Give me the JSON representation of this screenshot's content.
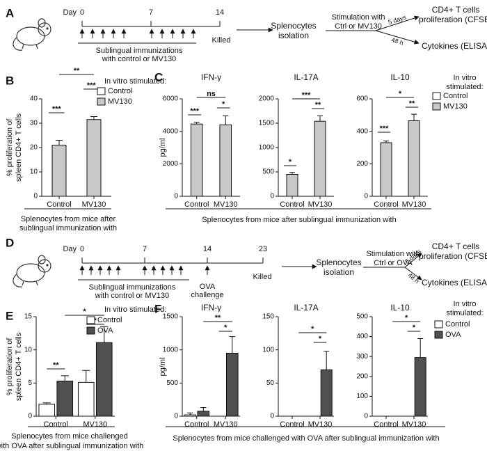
{
  "panel_labels": [
    "A",
    "B",
    "C",
    "D",
    "E",
    "F"
  ],
  "timelines": [
    {
      "day_label": "Day",
      "days": [
        0,
        7,
        14
      ],
      "end_label": "Killed",
      "immunization": [
        "Sublingual immunizations",
        "with control or MV130"
      ],
      "isolation": [
        "Splenocytes",
        "isolation"
      ],
      "stimulation": [
        "Stimulation with",
        "Ctrl or MV130"
      ],
      "durations": [
        "5 days",
        "48 h"
      ],
      "readouts": [
        [
          "CD4+ T cells",
          "proliferation (CFSE)"
        ],
        [
          "Cytokines (ELISA)"
        ]
      ]
    },
    {
      "day_label": "Day",
      "days": [
        0,
        7,
        14,
        23
      ],
      "end_label": "Killed",
      "immunization": [
        "Sublingual immunizations",
        "with control or MV130"
      ],
      "challenge": [
        "OVA",
        "challenge"
      ],
      "isolation": [
        "Splenocytes",
        "isolation"
      ],
      "stimulation": [
        "Stimulation with",
        "Ctrl or OVA"
      ],
      "durations": [
        "5 days",
        "48 h"
      ],
      "readouts": [
        [
          "CD4+ T cells",
          "proliferation (CFSE)"
        ],
        [
          "Cytokines (ELISA)"
        ]
      ]
    }
  ],
  "chart_data": [
    {
      "type": "bar",
      "categories": [
        "Control",
        "MV130"
      ],
      "series": [
        {
          "name": "Control",
          "color": "#ffffff",
          "values": [
            null,
            null
          ],
          "errors": [
            null,
            null
          ]
        },
        {
          "name": "MV130",
          "color": "#c8c8c8",
          "values": [
            21,
            31.5
          ],
          "errors": [
            2,
            1.2
          ]
        }
      ],
      "ylim": [
        0,
        40
      ],
      "yticks": [
        0,
        10,
        20,
        30,
        40
      ],
      "ylabel": [
        "% proliferation of",
        "spleen CD4+ T cells"
      ],
      "xlabel": [
        "Splenocytes from mice after",
        "sublingual immunization with"
      ],
      "legend_title": [
        "In vitro stimulated:"
      ],
      "significance": [
        "***",
        "***",
        "**"
      ]
    },
    {
      "type": "bar",
      "title": "IFN-γ",
      "categories": [
        "Control",
        "MV130"
      ],
      "series": [
        {
          "color": "#c8c8c8",
          "values": [
            4450,
            4400
          ],
          "errors": [
            100,
            550
          ]
        }
      ],
      "ylim": [
        0,
        6000
      ],
      "yticks": [
        0,
        2000,
        4000,
        6000
      ],
      "ylabel": [
        "pg/ml"
      ],
      "xlabel": [
        "Splenocytes from mice after sublingual immunization with"
      ],
      "significance": [
        "***",
        "ns",
        "*"
      ]
    },
    {
      "type": "bar",
      "title": "IL-17A",
      "categories": [
        "Control",
        "MV130"
      ],
      "series": [
        {
          "color": "#c8c8c8",
          "values": [
            450,
            1540
          ],
          "errors": [
            40,
            110
          ]
        }
      ],
      "ylim": [
        0,
        2000
      ],
      "yticks": [
        0,
        500,
        1000,
        1500,
        2000
      ],
      "significance": [
        "*",
        "***",
        "**"
      ]
    },
    {
      "type": "bar",
      "title": "IL-10",
      "categories": [
        "Control",
        "MV130"
      ],
      "series": [
        {
          "name": "Control",
          "color": "#ffffff",
          "values": [
            null,
            null
          ],
          "errors": [
            null,
            null
          ]
        },
        {
          "name": "MV130",
          "color": "#c8c8c8",
          "values": [
            330,
            465
          ],
          "errors": [
            10,
            40
          ]
        }
      ],
      "ylim": [
        0,
        600
      ],
      "yticks": [
        0,
        200,
        400,
        600
      ],
      "legend_title": [
        "In vitro",
        "stimulated:"
      ],
      "significance": [
        "***",
        "*",
        "**"
      ]
    },
    {
      "type": "bar",
      "categories": [
        "Control",
        "MV130"
      ],
      "series": [
        {
          "name": "Control",
          "color": "#ffffff",
          "values": [
            1.8,
            5.1
          ],
          "errors": [
            0.2,
            1.8
          ]
        },
        {
          "name": "OVA",
          "color": "#505050",
          "values": [
            5.3,
            11.1
          ],
          "errors": [
            0.8,
            2.4
          ]
        }
      ],
      "ylim": [
        0,
        15
      ],
      "yticks": [
        0,
        5,
        10,
        15
      ],
      "ylabel": [
        "% proliferation of",
        "spleen CD4+ T cells"
      ],
      "xlabel": [
        "Splenocytes from mice challenged",
        "with OVA after sublingual immunization with"
      ],
      "legend_title": [
        "In vitro stimulated:"
      ],
      "significance": [
        "**",
        "*",
        "*"
      ]
    },
    {
      "type": "bar",
      "title": "IFN-γ",
      "categories": [
        "Control",
        "MV130"
      ],
      "series": [
        {
          "color": "#ffffff",
          "values": [
            20,
            0
          ],
          "errors": [
            30,
            null
          ]
        },
        {
          "color": "#505050",
          "values": [
            75,
            950
          ],
          "errors": [
            55,
            250
          ]
        }
      ],
      "ylim": [
        0,
        1500
      ],
      "yticks": [
        0,
        500,
        1000,
        1500
      ],
      "ylabel": [
        "pg/ml"
      ],
      "xlabel": [
        "Splenocytes from mice challenged with OVA after sublingual immunization with"
      ],
      "significance": [
        "**",
        "*"
      ]
    },
    {
      "type": "bar",
      "title": "IL-17A",
      "categories": [
        "Control",
        "MV130"
      ],
      "series": [
        {
          "color": "#ffffff",
          "values": [
            0,
            0
          ],
          "errors": [
            null,
            null
          ]
        },
        {
          "color": "#505050",
          "values": [
            0,
            70
          ],
          "errors": [
            null,
            28
          ]
        }
      ],
      "ylim": [
        0,
        150
      ],
      "yticks": [
        0,
        50,
        100,
        150
      ],
      "significance": [
        "*",
        "*"
      ]
    },
    {
      "type": "bar",
      "title": "IL-10",
      "categories": [
        "Control",
        "MV130"
      ],
      "series": [
        {
          "name": "Control",
          "color": "#ffffff",
          "values": [
            0,
            0
          ],
          "errors": [
            null,
            null
          ]
        },
        {
          "name": "OVA",
          "color": "#505050",
          "values": [
            0,
            295
          ],
          "errors": [
            null,
            95
          ]
        }
      ],
      "ylim": [
        0,
        500
      ],
      "yticks": [
        0,
        100,
        200,
        300,
        400,
        500
      ],
      "legend_title": [
        "In vitro",
        "stimulated:"
      ],
      "significance": [
        "*",
        "*"
      ]
    }
  ]
}
